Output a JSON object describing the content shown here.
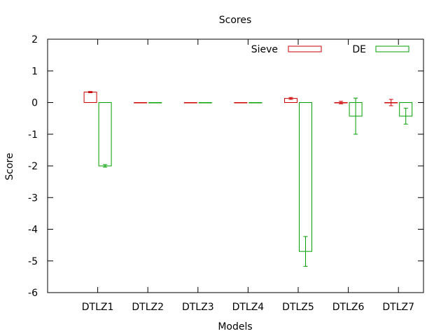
{
  "chart_data": {
    "type": "bar",
    "title": "Scores",
    "xlabel": "Models",
    "ylabel": "Score",
    "ylim": [
      -6,
      2
    ],
    "yticks": [
      -6,
      -5,
      -4,
      -3,
      -2,
      -1,
      0,
      1,
      2
    ],
    "grid": false,
    "legend_position": "top-right",
    "categories": [
      "DTLZ1",
      "DTLZ2",
      "DTLZ3",
      "DTLZ4",
      "DTLZ5",
      "DTLZ6",
      "DTLZ7"
    ],
    "series": [
      {
        "name": "Sieve",
        "color": "#cc0000",
        "values": [
          0.33,
          0.0,
          0.0,
          0.0,
          0.13,
          0.0,
          0.0
        ],
        "errors": [
          0.02,
          0.0,
          0.0,
          0.0,
          0.03,
          0.04,
          0.1
        ]
      },
      {
        "name": "DE",
        "color": "#00a000",
        "values": [
          -2.0,
          0.0,
          0.0,
          0.0,
          -4.7,
          -0.43,
          -0.43
        ],
        "errors": [
          0.04,
          0.0,
          0.0,
          0.0,
          0.47,
          0.57,
          0.25
        ]
      }
    ]
  }
}
